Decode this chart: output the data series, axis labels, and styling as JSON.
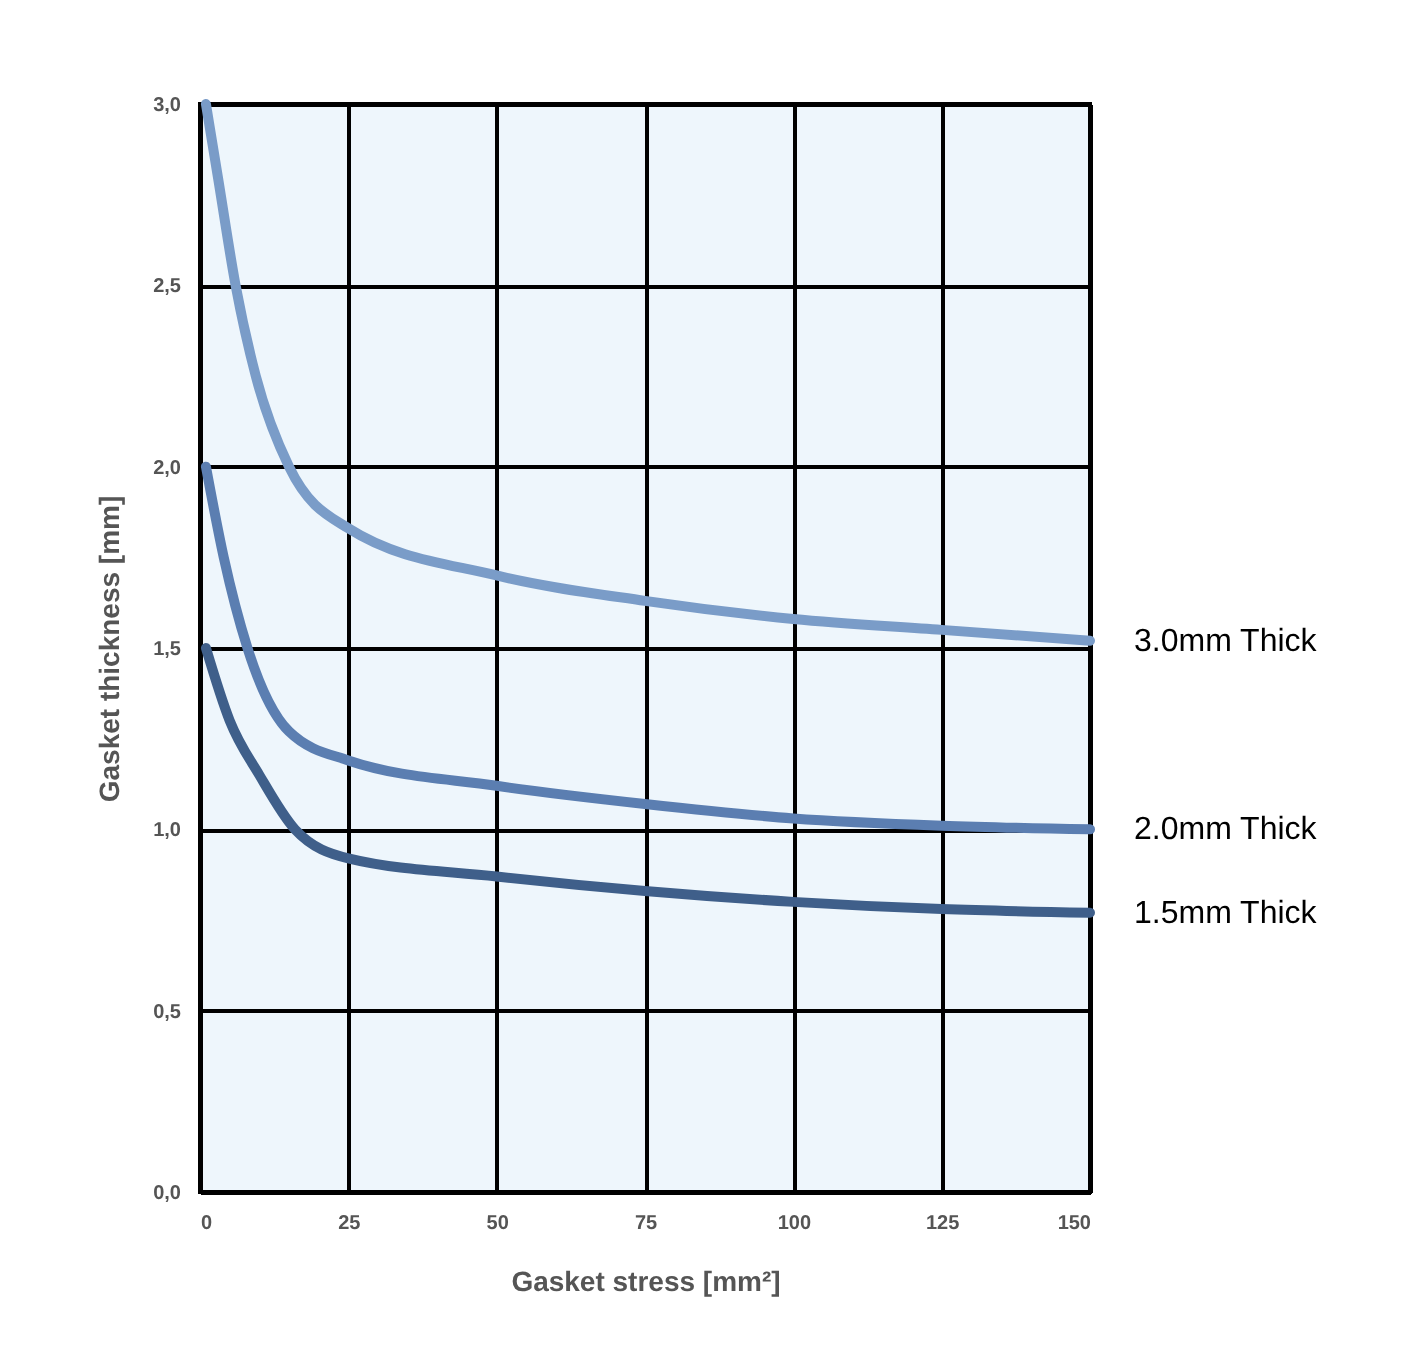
{
  "chart_data": {
    "type": "line",
    "xlabel": "Gasket stress [mm²]",
    "ylabel": "Gasket thickness [mm]",
    "xlim": [
      0,
      150
    ],
    "xticks": [
      0,
      25,
      50,
      75,
      100,
      125,
      150
    ],
    "ylim": [
      0,
      3
    ],
    "yticks": [
      {
        "value": 0,
        "label": "0,0"
      },
      {
        "value": 0.5,
        "label": "0,5"
      },
      {
        "value": 1,
        "label": "1,0"
      },
      {
        "value": 1.5,
        "label": "1,5"
      },
      {
        "value": 2,
        "label": "2,0"
      },
      {
        "value": 2.5,
        "label": "2,5"
      },
      {
        "value": 3,
        "label": "3,0"
      }
    ],
    "grid": true,
    "legend": false,
    "marker": "none",
    "line_style": "solid",
    "series": [
      {
        "name": "3.0mm Thick",
        "color": "#7a9cc8",
        "x": [
          1,
          3,
          6,
          9.4,
          15,
          25,
          50,
          75,
          100,
          125,
          150
        ],
        "values": [
          3.0,
          2.8,
          2.5,
          2.25,
          2.0,
          1.83,
          1.7,
          1.63,
          1.58,
          1.55,
          1.52
        ]
      },
      {
        "name": "2.0mm Thick",
        "color": "#5b7eb1",
        "x": [
          1,
          4,
          8,
          15,
          25,
          50,
          75,
          100,
          125,
          150
        ],
        "values": [
          2.0,
          1.75,
          1.5,
          1.27,
          1.19,
          1.12,
          1.07,
          1.03,
          1.01,
          1.0
        ]
      },
      {
        "name": "1.5mm Thick",
        "color": "#3f5f8a",
        "x": [
          1,
          5,
          10,
          16,
          25,
          50,
          75,
          100,
          125,
          150
        ],
        "values": [
          1.5,
          1.3,
          1.15,
          1.0,
          0.92,
          0.87,
          0.83,
          0.8,
          0.78,
          0.77
        ]
      }
    ]
  }
}
